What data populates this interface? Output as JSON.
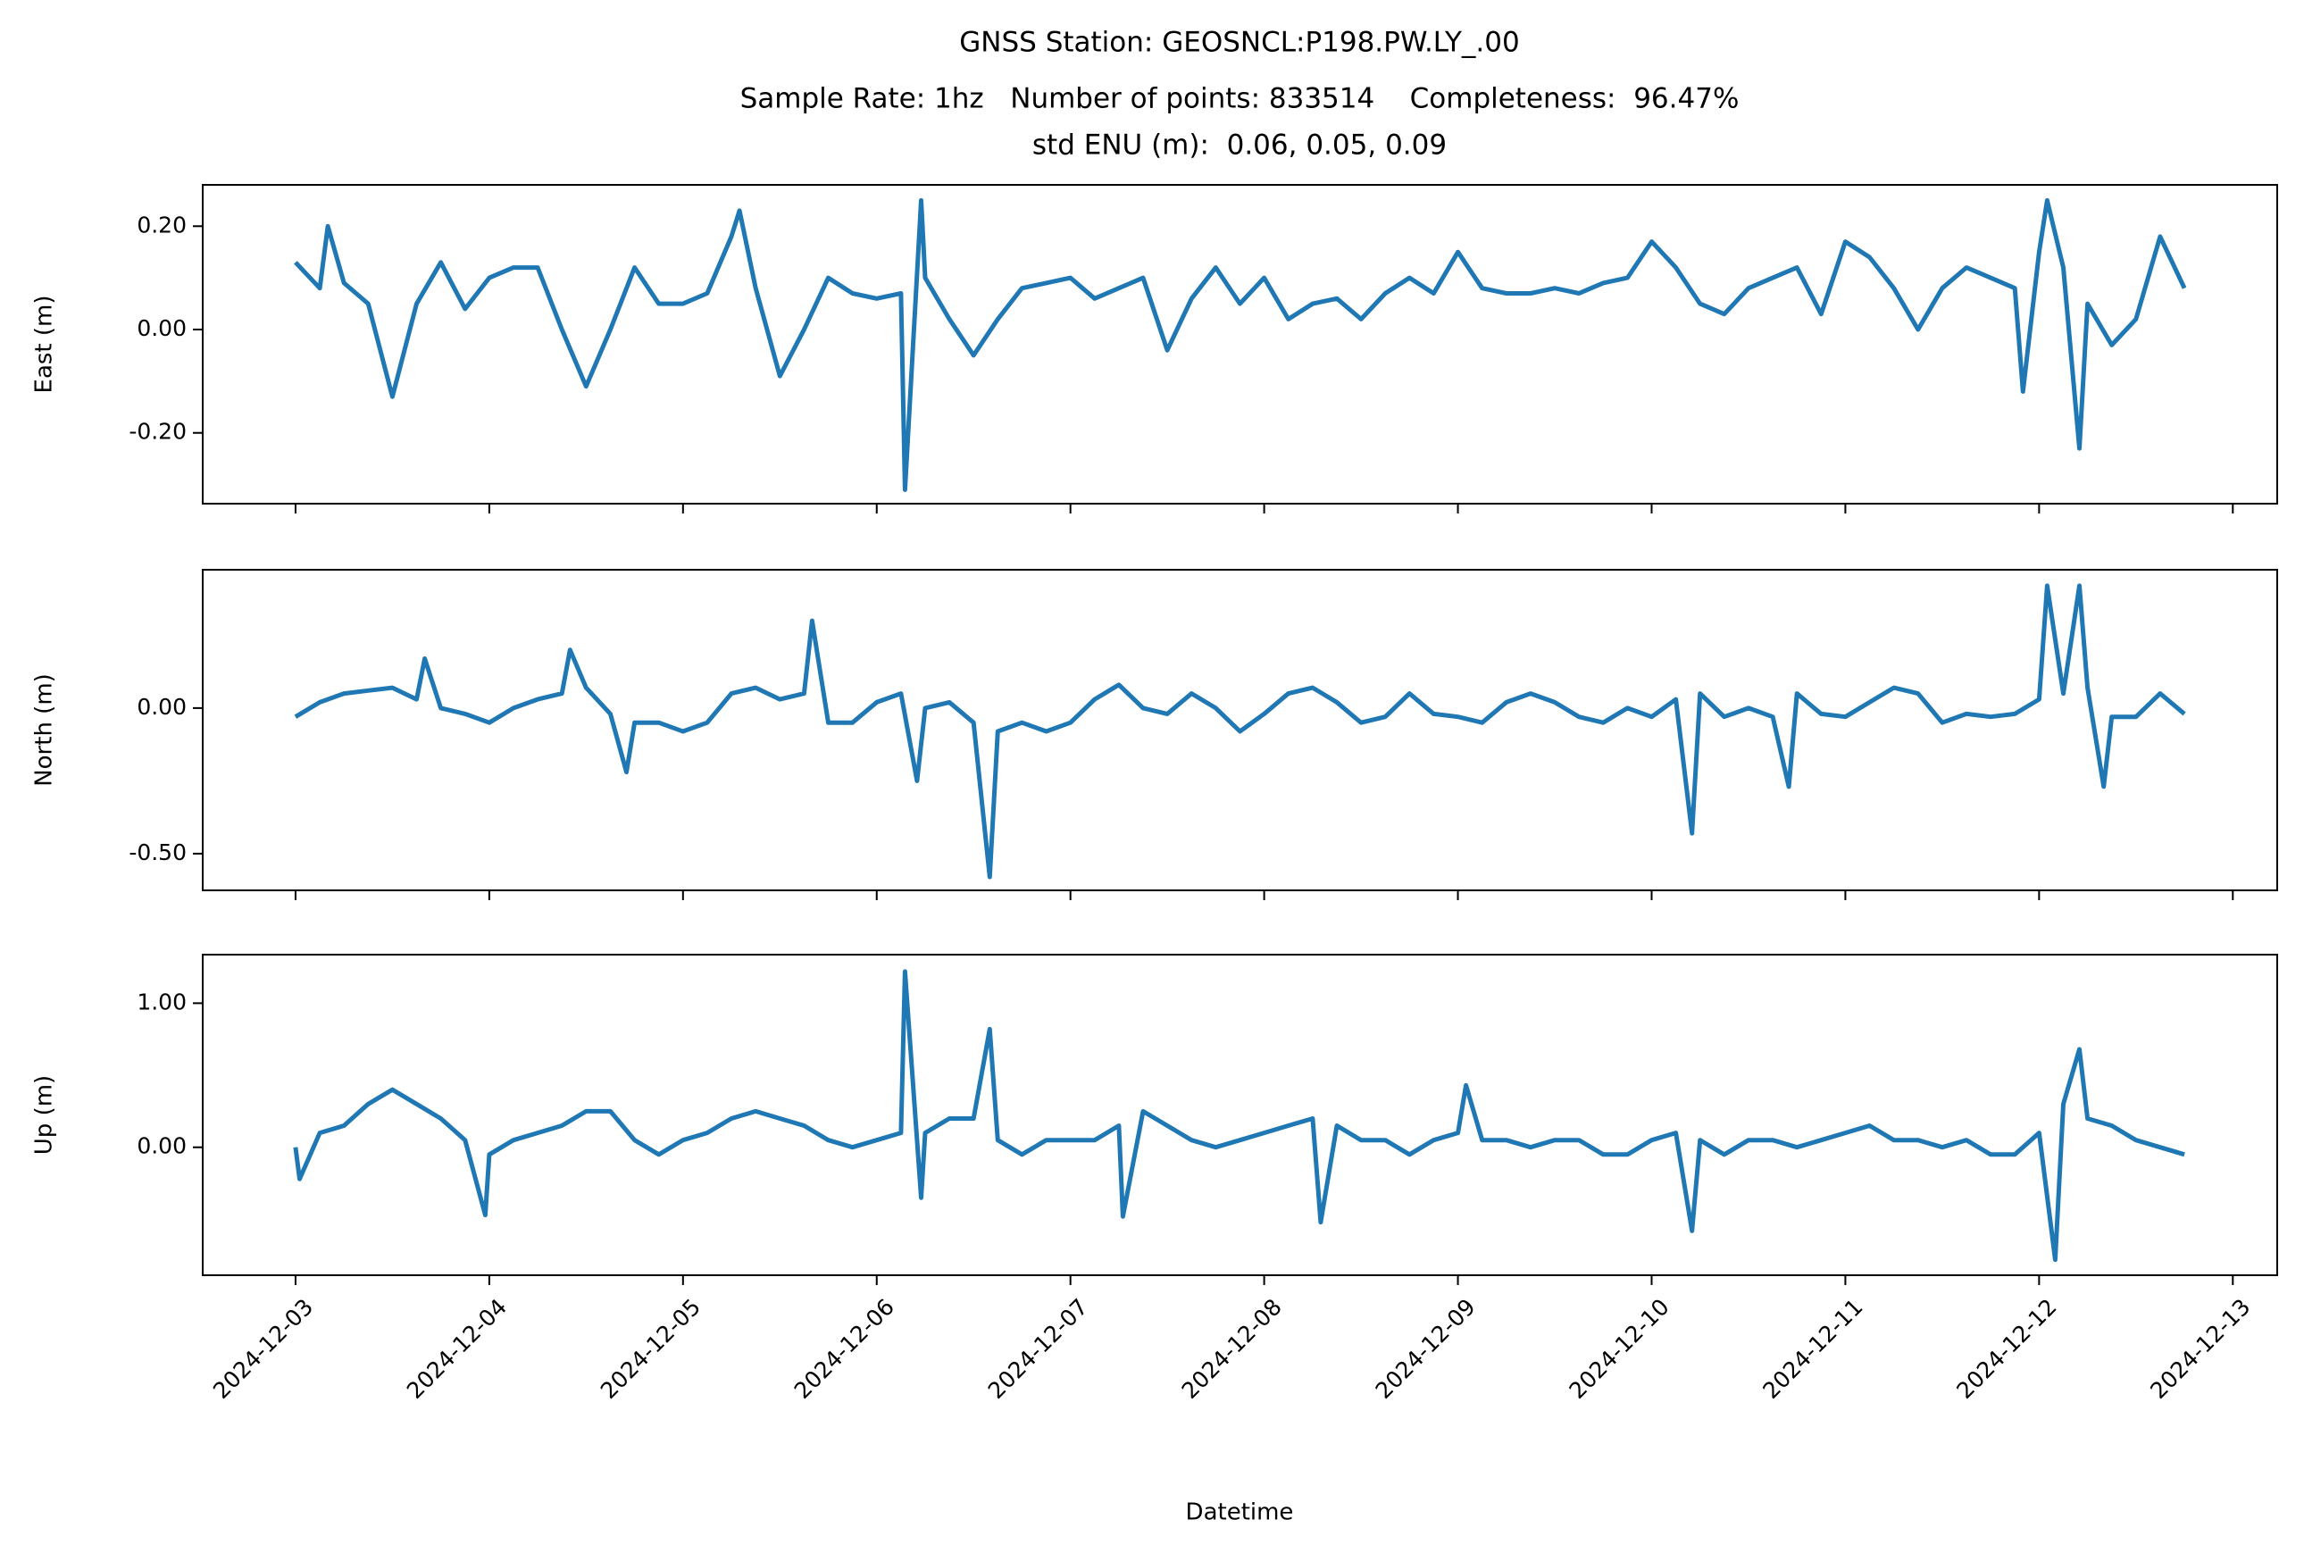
{
  "chart_data": [
    {
      "type": "line",
      "title": "GNSS Station: GEOSNCL:P198.PW.LY_.00",
      "subtitle": [
        "Sample Rate: 1hz   Number of points: 833514    Completeness:  96.47%",
        "std ENU (m):  0.06, 0.05, 0.09"
      ],
      "ylabel": "East (m)",
      "color": "#1f77b4",
      "ylim": [
        -0.337,
        0.28
      ],
      "yticks": [
        {
          "value": -0.2,
          "label": "-0.20"
        },
        {
          "value": 0,
          "label": "0.00"
        },
        {
          "value": 0.2,
          "label": "0.20"
        }
      ],
      "x": [
        "2024-12-03 00:00",
        "2024-12-03 03:00",
        "2024-12-03 04:00",
        "2024-12-03 06:00",
        "2024-12-03 09:00",
        "2024-12-03 12:00",
        "2024-12-03 15:00",
        "2024-12-03 18:00",
        "2024-12-03 21:00",
        "2024-12-04 00:00",
        "2024-12-04 03:00",
        "2024-12-04 06:00",
        "2024-12-04 09:00",
        "2024-12-04 12:00",
        "2024-12-04 15:00",
        "2024-12-04 18:00",
        "2024-12-04 21:00",
        "2024-12-05 00:00",
        "2024-12-05 03:00",
        "2024-12-05 06:00",
        "2024-12-05 07:00",
        "2024-12-05 09:00",
        "2024-12-05 12:00",
        "2024-12-05 15:00",
        "2024-12-05 18:00",
        "2024-12-05 21:00",
        "2024-12-06 00:00",
        "2024-12-06 03:00",
        "2024-12-06 03:30",
        "2024-12-06 05:30",
        "2024-12-06 06:00",
        "2024-12-06 09:00",
        "2024-12-06 12:00",
        "2024-12-06 15:00",
        "2024-12-06 18:00",
        "2024-12-06 21:00",
        "2024-12-07 00:00",
        "2024-12-07 03:00",
        "2024-12-07 06:00",
        "2024-12-07 09:00",
        "2024-12-07 12:00",
        "2024-12-07 15:00",
        "2024-12-07 18:00",
        "2024-12-07 21:00",
        "2024-12-08 00:00",
        "2024-12-08 03:00",
        "2024-12-08 06:00",
        "2024-12-08 09:00",
        "2024-12-08 12:00",
        "2024-12-08 15:00",
        "2024-12-08 18:00",
        "2024-12-08 21:00",
        "2024-12-09 00:00",
        "2024-12-09 03:00",
        "2024-12-09 06:00",
        "2024-12-09 09:00",
        "2024-12-09 12:00",
        "2024-12-09 15:00",
        "2024-12-09 18:00",
        "2024-12-09 21:00",
        "2024-12-10 00:00",
        "2024-12-10 03:00",
        "2024-12-10 06:00",
        "2024-12-10 09:00",
        "2024-12-10 12:00",
        "2024-12-10 15:00",
        "2024-12-10 18:00",
        "2024-12-10 21:00",
        "2024-12-11 00:00",
        "2024-12-11 03:00",
        "2024-12-11 06:00",
        "2024-12-11 09:00",
        "2024-12-11 12:00",
        "2024-12-11 15:00",
        "2024-12-11 18:00",
        "2024-12-11 21:00",
        "2024-12-11 22:00",
        "2024-12-12 00:00",
        "2024-12-12 01:00",
        "2024-12-12 03:00",
        "2024-12-12 05:00",
        "2024-12-12 06:00",
        "2024-12-12 09:00",
        "2024-12-12 12:00",
        "2024-12-12 15:00",
        "2024-12-12 18:00"
      ],
      "values": [
        0.13,
        0.08,
        0.2,
        0.09,
        0.05,
        -0.13,
        0.05,
        0.13,
        0.04,
        0.1,
        0.12,
        0.12,
        0.0,
        -0.11,
        0.0,
        0.12,
        0.05,
        0.05,
        0.07,
        0.18,
        0.23,
        0.08,
        -0.09,
        0.0,
        0.1,
        0.07,
        0.06,
        0.07,
        -0.31,
        0.25,
        0.1,
        0.02,
        -0.05,
        0.02,
        0.08,
        0.09,
        0.1,
        0.06,
        0.08,
        0.1,
        -0.04,
        0.06,
        0.12,
        0.05,
        0.1,
        0.02,
        0.05,
        0.06,
        0.02,
        0.07,
        0.1,
        0.07,
        0.15,
        0.08,
        0.07,
        0.07,
        0.08,
        0.07,
        0.09,
        0.1,
        0.17,
        0.12,
        0.05,
        0.03,
        0.08,
        0.1,
        0.12,
        0.03,
        0.17,
        0.14,
        0.08,
        0.0,
        0.08,
        0.12,
        0.1,
        0.08,
        -0.12,
        0.15,
        0.25,
        0.12,
        -0.23,
        0.05,
        -0.03,
        0.02,
        0.18,
        0.08
      ]
    },
    {
      "type": "line",
      "ylabel": "North (m)",
      "color": "#1f77b4",
      "ylim": [
        -0.626,
        0.475
      ],
      "yticks": [
        {
          "value": -0.5,
          "label": "-0.50"
        },
        {
          "value": 0,
          "label": "0.00"
        }
      ],
      "x": [
        "2024-12-03 00:00",
        "2024-12-03 03:00",
        "2024-12-03 06:00",
        "2024-12-03 09:00",
        "2024-12-03 12:00",
        "2024-12-03 15:00",
        "2024-12-03 16:00",
        "2024-12-03 18:00",
        "2024-12-03 21:00",
        "2024-12-04 00:00",
        "2024-12-04 03:00",
        "2024-12-04 06:00",
        "2024-12-04 09:00",
        "2024-12-04 10:00",
        "2024-12-04 12:00",
        "2024-12-04 15:00",
        "2024-12-04 17:00",
        "2024-12-04 18:00",
        "2024-12-04 21:00",
        "2024-12-05 00:00",
        "2024-12-05 03:00",
        "2024-12-05 06:00",
        "2024-12-05 09:00",
        "2024-12-05 12:00",
        "2024-12-05 15:00",
        "2024-12-05 16:00",
        "2024-12-05 18:00",
        "2024-12-05 21:00",
        "2024-12-06 00:00",
        "2024-12-06 03:00",
        "2024-12-06 05:00",
        "2024-12-06 06:00",
        "2024-12-06 09:00",
        "2024-12-06 12:00",
        "2024-12-06 14:00",
        "2024-12-06 15:00",
        "2024-12-06 18:00",
        "2024-12-06 21:00",
        "2024-12-07 00:00",
        "2024-12-07 03:00",
        "2024-12-07 06:00",
        "2024-12-07 09:00",
        "2024-12-07 12:00",
        "2024-12-07 15:00",
        "2024-12-07 18:00",
        "2024-12-07 21:00",
        "2024-12-08 00:00",
        "2024-12-08 03:00",
        "2024-12-08 06:00",
        "2024-12-08 09:00",
        "2024-12-08 12:00",
        "2024-12-08 15:00",
        "2024-12-08 18:00",
        "2024-12-08 21:00",
        "2024-12-09 00:00",
        "2024-12-09 03:00",
        "2024-12-09 06:00",
        "2024-12-09 09:00",
        "2024-12-09 12:00",
        "2024-12-09 15:00",
        "2024-12-09 18:00",
        "2024-12-09 21:00",
        "2024-12-10 00:00",
        "2024-12-10 03:00",
        "2024-12-10 05:00",
        "2024-12-10 06:00",
        "2024-12-10 09:00",
        "2024-12-10 12:00",
        "2024-12-10 15:00",
        "2024-12-10 17:00",
        "2024-12-10 18:00",
        "2024-12-10 21:00",
        "2024-12-11 00:00",
        "2024-12-11 03:00",
        "2024-12-11 06:00",
        "2024-12-11 09:00",
        "2024-12-11 12:00",
        "2024-12-11 15:00",
        "2024-12-11 18:00",
        "2024-12-11 21:00",
        "2024-12-12 00:00",
        "2024-12-12 01:00",
        "2024-12-12 03:00",
        "2024-12-12 05:00",
        "2024-12-12 06:00",
        "2024-12-12 08:00",
        "2024-12-12 09:00",
        "2024-12-12 12:00",
        "2024-12-12 15:00",
        "2024-12-12 18:00"
      ],
      "values": [
        -0.03,
        0.02,
        0.05,
        0.06,
        0.07,
        0.03,
        0.17,
        0.0,
        -0.02,
        -0.05,
        0.0,
        0.03,
        0.05,
        0.2,
        0.07,
        -0.02,
        -0.22,
        -0.05,
        -0.05,
        -0.08,
        -0.05,
        0.05,
        0.07,
        0.03,
        0.05,
        0.3,
        -0.05,
        -0.05,
        0.02,
        0.05,
        -0.25,
        0.0,
        0.02,
        -0.05,
        -0.58,
        -0.08,
        -0.05,
        -0.08,
        -0.05,
        0.03,
        0.08,
        0.0,
        -0.02,
        0.05,
        0.0,
        -0.08,
        -0.02,
        0.05,
        0.07,
        0.02,
        -0.05,
        -0.03,
        0.05,
        -0.02,
        -0.03,
        -0.05,
        0.02,
        0.05,
        0.02,
        -0.03,
        -0.05,
        0.0,
        -0.03,
        0.03,
        -0.43,
        0.05,
        -0.03,
        0.0,
        -0.03,
        -0.27,
        0.05,
        -0.02,
        -0.03,
        0.02,
        0.07,
        0.05,
        -0.05,
        -0.02,
        -0.03,
        -0.02,
        0.03,
        0.42,
        0.05,
        0.42,
        0.07,
        -0.27,
        -0.03,
        -0.03,
        0.05,
        -0.02
      ]
    },
    {
      "type": "line",
      "ylabel": "Up (m)",
      "xlabel": "Datetime",
      "color": "#1f77b4",
      "ylim": [
        -0.888,
        1.337
      ],
      "yticks": [
        {
          "value": 0,
          "label": "0.00"
        },
        {
          "value": 1,
          "label": "1.00"
        }
      ],
      "xlim": [
        "2024-12-02 12:30",
        "2024-12-13 05:30"
      ],
      "xticks": [
        "2024-12-03",
        "2024-12-04",
        "2024-12-05",
        "2024-12-06",
        "2024-12-07",
        "2024-12-08",
        "2024-12-09",
        "2024-12-10",
        "2024-12-11",
        "2024-12-12",
        "2024-12-13"
      ],
      "x": [
        "2024-12-03 00:00",
        "2024-12-03 00:30",
        "2024-12-03 03:00",
        "2024-12-03 06:00",
        "2024-12-03 09:00",
        "2024-12-03 12:00",
        "2024-12-03 15:00",
        "2024-12-03 18:00",
        "2024-12-03 21:00",
        "2024-12-03 23:30",
        "2024-12-04 00:00",
        "2024-12-04 03:00",
        "2024-12-04 06:00",
        "2024-12-04 09:00",
        "2024-12-04 12:00",
        "2024-12-04 15:00",
        "2024-12-04 18:00",
        "2024-12-04 21:00",
        "2024-12-05 00:00",
        "2024-12-05 03:00",
        "2024-12-05 06:00",
        "2024-12-05 09:00",
        "2024-12-05 12:00",
        "2024-12-05 15:00",
        "2024-12-05 18:00",
        "2024-12-05 21:00",
        "2024-12-06 00:00",
        "2024-12-06 03:00",
        "2024-12-06 03:30",
        "2024-12-06 05:30",
        "2024-12-06 06:00",
        "2024-12-06 09:00",
        "2024-12-06 12:00",
        "2024-12-06 14:00",
        "2024-12-06 15:00",
        "2024-12-06 18:00",
        "2024-12-06 21:00",
        "2024-12-07 00:00",
        "2024-12-07 03:00",
        "2024-12-07 06:00",
        "2024-12-07 06:30",
        "2024-12-07 09:00",
        "2024-12-07 12:00",
        "2024-12-07 15:00",
        "2024-12-07 18:00",
        "2024-12-07 21:00",
        "2024-12-08 00:00",
        "2024-12-08 03:00",
        "2024-12-08 06:00",
        "2024-12-08 07:00",
        "2024-12-08 09:00",
        "2024-12-08 12:00",
        "2024-12-08 15:00",
        "2024-12-08 18:00",
        "2024-12-08 21:00",
        "2024-12-09 00:00",
        "2024-12-09 01:00",
        "2024-12-09 03:00",
        "2024-12-09 06:00",
        "2024-12-09 09:00",
        "2024-12-09 12:00",
        "2024-12-09 15:00",
        "2024-12-09 18:00",
        "2024-12-09 21:00",
        "2024-12-10 00:00",
        "2024-12-10 03:00",
        "2024-12-10 05:00",
        "2024-12-10 06:00",
        "2024-12-10 09:00",
        "2024-12-10 12:00",
        "2024-12-10 15:00",
        "2024-12-10 18:00",
        "2024-12-10 21:00",
        "2024-12-11 00:00",
        "2024-12-11 03:00",
        "2024-12-11 06:00",
        "2024-12-11 09:00",
        "2024-12-11 12:00",
        "2024-12-11 15:00",
        "2024-12-11 18:00",
        "2024-12-11 21:00",
        "2024-12-12 00:00",
        "2024-12-12 02:00",
        "2024-12-12 03:00",
        "2024-12-12 05:00",
        "2024-12-12 06:00",
        "2024-12-12 09:00",
        "2024-12-12 12:00",
        "2024-12-12 15:00",
        "2024-12-12 18:00"
      ],
      "values": [
        0.0,
        -0.22,
        0.1,
        0.15,
        0.3,
        0.4,
        0.3,
        0.2,
        0.05,
        -0.47,
        -0.05,
        0.05,
        0.1,
        0.15,
        0.25,
        0.25,
        0.05,
        -0.05,
        0.05,
        0.1,
        0.2,
        0.25,
        0.2,
        0.15,
        0.05,
        0.0,
        0.05,
        0.1,
        1.22,
        -0.35,
        0.1,
        0.2,
        0.2,
        0.82,
        0.05,
        -0.05,
        0.05,
        0.05,
        0.05,
        0.15,
        -0.48,
        0.25,
        0.15,
        0.05,
        0.0,
        0.05,
        0.1,
        0.15,
        0.2,
        -0.52,
        0.15,
        0.05,
        0.05,
        -0.05,
        0.05,
        0.1,
        0.43,
        0.05,
        0.05,
        0.0,
        0.05,
        0.05,
        -0.05,
        -0.05,
        0.05,
        0.1,
        -0.58,
        0.05,
        -0.05,
        0.05,
        0.05,
        0.0,
        0.05,
        0.1,
        0.15,
        0.05,
        0.05,
        0.0,
        0.05,
        -0.05,
        -0.05,
        0.1,
        -0.78,
        0.3,
        0.68,
        0.2,
        0.15,
        0.05,
        0.0,
        -0.05
      ]
    }
  ]
}
